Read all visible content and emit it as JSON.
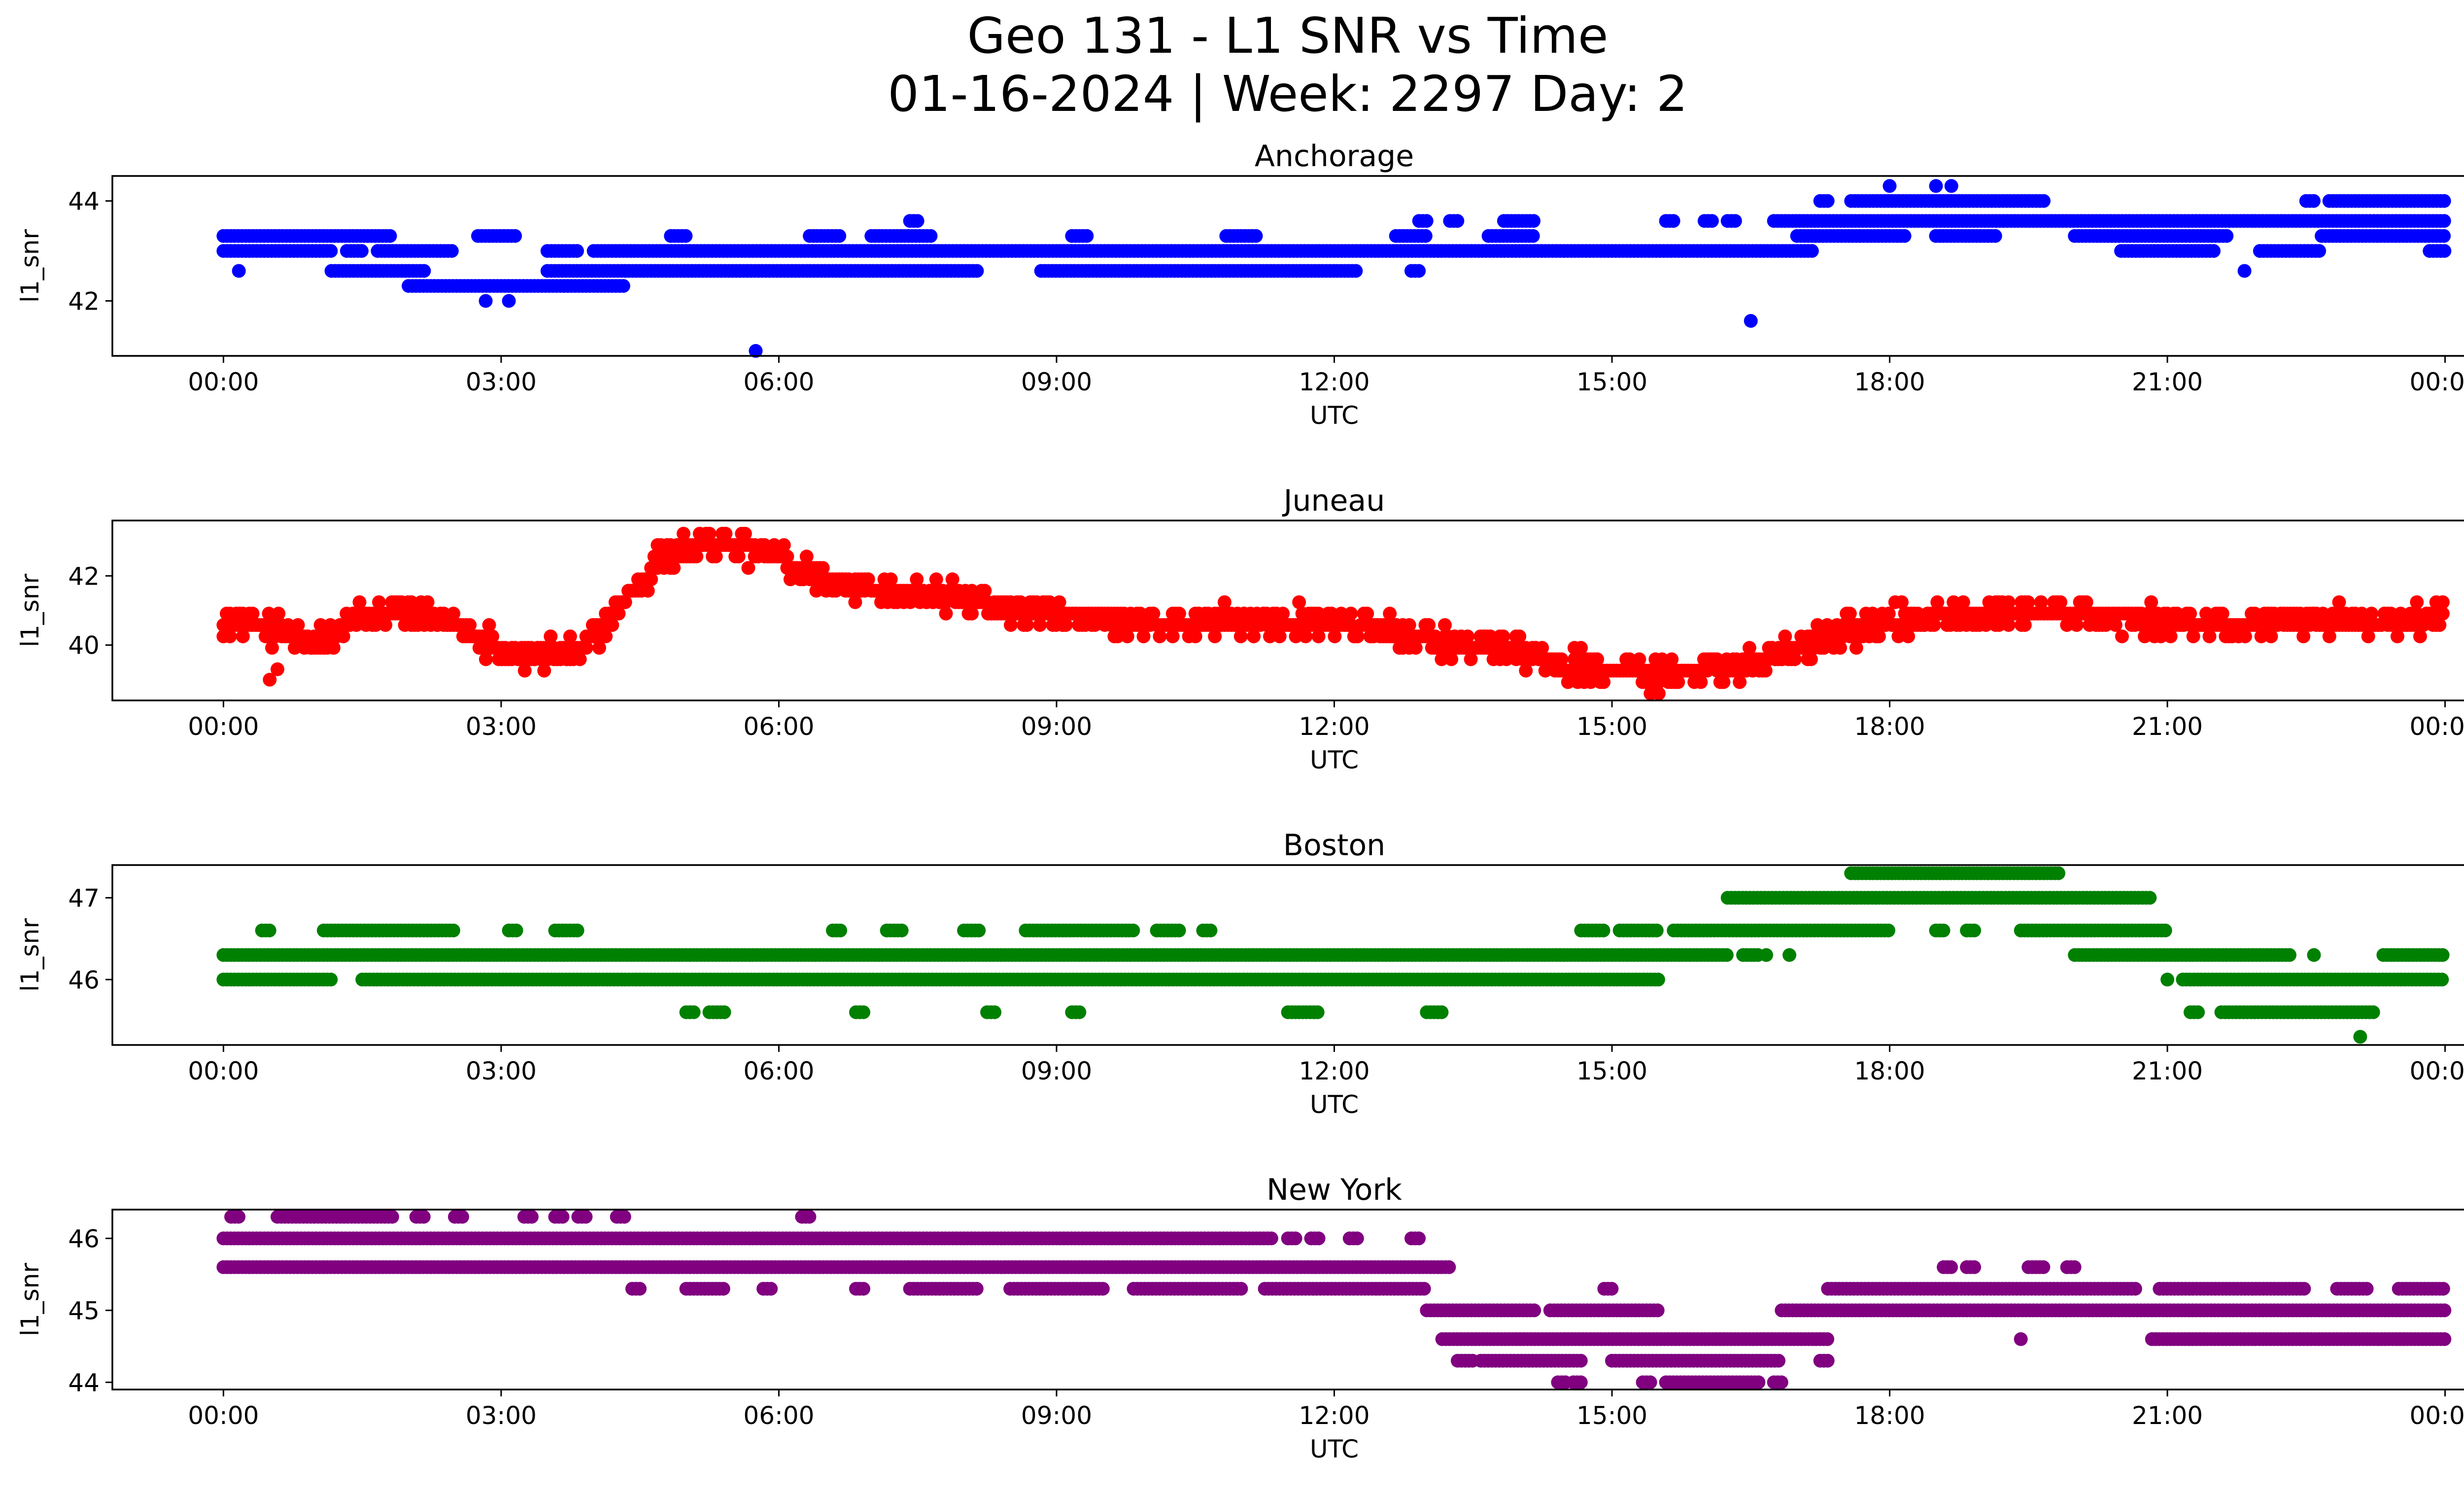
{
  "figure": {
    "title_line1": "Geo 131 - L1 SNR vs Time",
    "title_line2": "01-16-2024 | Week: 2297 Day: 2"
  },
  "chart_data": [
    {
      "type": "scatter",
      "title": "Anchorage",
      "xlabel": "UTC",
      "ylabel": "l1_snr",
      "color": "#0000ff",
      "xlim": [
        "2024-01-16 00:00",
        "2024-01-17 00:00"
      ],
      "xticks": [
        "00:00",
        "03:00",
        "06:00",
        "09:00",
        "12:00",
        "15:00",
        "18:00",
        "21:00",
        "00:00"
      ],
      "ylim": [
        40.9,
        44.5
      ],
      "yticks": [
        42,
        44
      ],
      "grid": false,
      "levels": [
        {
          "y": 43.3,
          "ranges": [
            [
              "00:00",
              "01:50"
            ],
            [
              "02:45",
              "03:10"
            ],
            [
              "04:50",
              "05:00"
            ],
            [
              "06:20",
              "06:40"
            ],
            [
              "07:00",
              "07:40"
            ],
            [
              "09:10",
              "09:20"
            ],
            [
              "10:50",
              "11:10"
            ],
            [
              "12:40",
              "13:00"
            ],
            [
              "13:40",
              "14:10"
            ],
            [
              "17:00",
              "18:10"
            ],
            [
              "18:30",
              "19:10"
            ],
            [
              "20:00",
              "21:40"
            ],
            [
              "22:40",
              "24:00"
            ]
          ]
        },
        {
          "y": 43.0,
          "ranges": [
            [
              "00:00",
              "01:10"
            ],
            [
              "01:20",
              "01:30"
            ],
            [
              "01:40",
              "02:30"
            ],
            [
              "03:30",
              "03:50"
            ],
            [
              "04:00",
              "17:10"
            ],
            [
              "20:30",
              "21:30"
            ],
            [
              "22:00",
              "22:40"
            ],
            [
              "23:50",
              "24:00"
            ]
          ]
        },
        {
          "y": 42.6,
          "ranges": [
            [
              "01:10",
              "02:10"
            ],
            [
              "03:30",
              "08:10"
            ],
            [
              "08:50",
              "12:15"
            ],
            [
              "12:50",
              "12:55"
            ]
          ]
        },
        {
          "y": 42.3,
          "ranges": [
            [
              "02:00",
              "04:20"
            ]
          ]
        },
        {
          "y": 43.6,
          "ranges": [
            [
              "07:25",
              "07:30"
            ],
            [
              "12:55",
              "13:00"
            ],
            [
              "13:15",
              "13:20"
            ],
            [
              "13:50",
              "14:10"
            ],
            [
              "15:35",
              "15:40"
            ],
            [
              "16:00",
              "16:05"
            ],
            [
              "16:15",
              "16:20"
            ],
            [
              "16:45",
              "24:00"
            ]
          ]
        },
        {
          "y": 44.0,
          "ranges": [
            [
              "17:15",
              "17:20"
            ],
            [
              "17:35",
              "19:40"
            ],
            [
              "22:30",
              "22:35"
            ],
            [
              "22:45",
              "24:00"
            ]
          ]
        }
      ],
      "points": [
        {
          "x": "00:10",
          "y": 42.6
        },
        {
          "x": "02:50",
          "y": 42.0
        },
        {
          "x": "03:05",
          "y": 42.0
        },
        {
          "x": "05:45",
          "y": 41.0
        },
        {
          "x": "16:30",
          "y": 41.6
        },
        {
          "x": "18:00",
          "y": 44.3
        },
        {
          "x": "18:30",
          "y": 44.3
        },
        {
          "x": "18:40",
          "y": 44.3
        },
        {
          "x": "21:50",
          "y": 42.6
        }
      ]
    },
    {
      "type": "scatter",
      "title": "Juneau",
      "xlabel": "UTC",
      "ylabel": "l1_snr",
      "color": "#ff0000",
      "xlim": [
        "2024-01-16 00:00",
        "2024-01-17 00:00"
      ],
      "xticks": [
        "00:00",
        "03:00",
        "06:00",
        "09:00",
        "12:00",
        "15:00",
        "18:00",
        "21:00",
        "00:00"
      ],
      "ylim": [
        38.4,
        43.6
      ],
      "yticks": [
        40,
        42
      ],
      "grid": false,
      "trend": [
        {
          "x": "00:00",
          "y": 40.7
        },
        {
          "x": "00:30",
          "y": 40.5
        },
        {
          "x": "01:00",
          "y": 40.0
        },
        {
          "x": "01:30",
          "y": 40.8
        },
        {
          "x": "02:00",
          "y": 41.0
        },
        {
          "x": "02:30",
          "y": 40.6
        },
        {
          "x": "03:00",
          "y": 39.9
        },
        {
          "x": "03:30",
          "y": 39.7
        },
        {
          "x": "03:50",
          "y": 39.8
        },
        {
          "x": "04:20",
          "y": 41.3
        },
        {
          "x": "04:45",
          "y": 42.6
        },
        {
          "x": "05:10",
          "y": 42.9
        },
        {
          "x": "05:40",
          "y": 42.8
        },
        {
          "x": "06:10",
          "y": 42.3
        },
        {
          "x": "06:40",
          "y": 41.8
        },
        {
          "x": "07:30",
          "y": 41.5
        },
        {
          "x": "08:30",
          "y": 41.1
        },
        {
          "x": "09:00",
          "y": 40.8
        },
        {
          "x": "10:00",
          "y": 40.6
        },
        {
          "x": "11:00",
          "y": 40.7
        },
        {
          "x": "12:00",
          "y": 40.6
        },
        {
          "x": "12:40",
          "y": 40.4
        },
        {
          "x": "13:20",
          "y": 40.0
        },
        {
          "x": "14:00",
          "y": 39.7
        },
        {
          "x": "14:30",
          "y": 39.5
        },
        {
          "x": "15:00",
          "y": 39.3
        },
        {
          "x": "15:30",
          "y": 39.1
        },
        {
          "x": "16:00",
          "y": 39.3
        },
        {
          "x": "16:30",
          "y": 39.5
        },
        {
          "x": "17:00",
          "y": 40.0
        },
        {
          "x": "17:30",
          "y": 40.4
        },
        {
          "x": "18:00",
          "y": 40.7
        },
        {
          "x": "18:30",
          "y": 40.9
        },
        {
          "x": "19:30",
          "y": 41.0
        },
        {
          "x": "20:30",
          "y": 40.8
        },
        {
          "x": "21:00",
          "y": 40.6
        },
        {
          "x": "21:30",
          "y": 40.6
        },
        {
          "x": "22:30",
          "y": 40.7
        },
        {
          "x": "24:00",
          "y": 40.7
        }
      ],
      "points": [
        {
          "x": "00:30",
          "y": 39.0
        },
        {
          "x": "00:35",
          "y": 39.3
        },
        {
          "x": "15:25",
          "y": 38.6
        }
      ]
    },
    {
      "type": "scatter",
      "title": "Boston",
      "xlabel": "UTC",
      "ylabel": "l1_snr",
      "color": "#008000",
      "xlim": [
        "2024-01-16 00:00",
        "2024-01-17 00:00"
      ],
      "xticks": [
        "00:00",
        "03:00",
        "06:00",
        "09:00",
        "12:00",
        "15:00",
        "18:00",
        "21:00",
        "00:00"
      ],
      "ylim": [
        45.2,
        47.4
      ],
      "yticks": [
        46,
        47
      ],
      "grid": false,
      "levels": [
        {
          "y": 46.3,
          "ranges": [
            [
              "00:00",
              "16:15"
            ],
            [
              "16:25",
              "16:35"
            ],
            [
              "20:00",
              "22:20"
            ],
            [
              "23:20",
              "24:00"
            ]
          ]
        },
        {
          "y": 46.0,
          "ranges": [
            [
              "00:00",
              "01:10"
            ],
            [
              "01:30",
              "15:30"
            ],
            [
              "21:10",
              "24:00"
            ]
          ]
        },
        {
          "y": 46.6,
          "ranges": [
            [
              "00:25",
              "00:30"
            ],
            [
              "01:05",
              "02:30"
            ],
            [
              "03:05",
              "03:10"
            ],
            [
              "03:35",
              "03:50"
            ],
            [
              "06:35",
              "06:40"
            ],
            [
              "07:10",
              "07:20"
            ],
            [
              "08:00",
              "08:10"
            ],
            [
              "08:40",
              "09:50"
            ],
            [
              "10:05",
              "10:20"
            ],
            [
              "10:35",
              "10:40"
            ],
            [
              "14:40",
              "14:55"
            ],
            [
              "15:05",
              "15:30"
            ],
            [
              "15:40",
              "18:00"
            ],
            [
              "18:30",
              "18:35"
            ],
            [
              "18:50",
              "18:55"
            ],
            [
              "19:25",
              "21:00"
            ]
          ]
        },
        {
          "y": 45.6,
          "ranges": [
            [
              "05:00",
              "05:05"
            ],
            [
              "05:15",
              "05:25"
            ],
            [
              "06:50",
              "06:55"
            ],
            [
              "08:15",
              "08:20"
            ],
            [
              "09:10",
              "09:15"
            ],
            [
              "11:30",
              "11:50"
            ],
            [
              "13:00",
              "13:10"
            ],
            [
              "21:15",
              "21:20"
            ],
            [
              "21:35",
              "23:15"
            ]
          ]
        },
        {
          "y": 47.0,
          "ranges": [
            [
              "16:15",
              "20:50"
            ]
          ]
        },
        {
          "y": 47.3,
          "ranges": [
            [
              "17:35",
              "19:50"
            ]
          ]
        }
      ],
      "points": [
        {
          "x": "16:40",
          "y": 46.3
        },
        {
          "x": "16:55",
          "y": 46.3
        },
        {
          "x": "21:00",
          "y": 46.0
        },
        {
          "x": "22:35",
          "y": 46.3
        },
        {
          "x": "23:05",
          "y": 45.3
        }
      ]
    },
    {
      "type": "scatter",
      "title": "New York",
      "xlabel": "UTC",
      "ylabel": "l1_snr",
      "color": "#800080",
      "xlim": [
        "2024-01-16 00:00",
        "2024-01-17 00:00"
      ],
      "xticks": [
        "00:00",
        "03:00",
        "06:00",
        "09:00",
        "12:00",
        "15:00",
        "18:00",
        "21:00",
        "00:00"
      ],
      "ylim": [
        43.9,
        46.4
      ],
      "yticks": [
        44,
        45,
        46
      ],
      "grid": false,
      "levels": [
        {
          "y": 46.0,
          "ranges": [
            [
              "00:00",
              "11:20"
            ],
            [
              "11:30",
              "11:35"
            ],
            [
              "11:45",
              "11:50"
            ],
            [
              "12:10",
              "12:15"
            ],
            [
              "12:50",
              "12:55"
            ]
          ]
        },
        {
          "y": 45.6,
          "ranges": [
            [
              "00:00",
              "13:15"
            ]
          ]
        },
        {
          "y": 46.3,
          "ranges": [
            [
              "00:05",
              "00:10"
            ],
            [
              "00:35",
              "01:50"
            ],
            [
              "02:05",
              "02:10"
            ],
            [
              "02:30",
              "02:35"
            ],
            [
              "03:15",
              "03:20"
            ],
            [
              "03:35",
              "03:40"
            ],
            [
              "03:50",
              "03:55"
            ],
            [
              "04:15",
              "04:20"
            ],
            [
              "06:15",
              "06:20"
            ]
          ]
        },
        {
          "y": 45.3,
          "ranges": [
            [
              "04:25",
              "04:30"
            ],
            [
              "05:00",
              "05:25"
            ],
            [
              "05:50",
              "05:55"
            ],
            [
              "06:50",
              "06:55"
            ],
            [
              "07:25",
              "08:10"
            ],
            [
              "08:30",
              "09:30"
            ],
            [
              "09:50",
              "11:00"
            ],
            [
              "11:15",
              "13:00"
            ],
            [
              "14:55",
              "15:00"
            ],
            [
              "17:20",
              "20:40"
            ],
            [
              "20:55",
              "22:30"
            ],
            [
              "22:50",
              "23:10"
            ],
            [
              "23:30",
              "24:00"
            ]
          ]
        },
        {
          "y": 45.0,
          "ranges": [
            [
              "13:00",
              "14:10"
            ],
            [
              "14:20",
              "15:30"
            ],
            [
              "16:50",
              "24:00"
            ]
          ]
        },
        {
          "y": 44.6,
          "ranges": [
            [
              "13:10",
              "17:20"
            ],
            [
              "20:50",
              "24:00"
            ]
          ]
        },
        {
          "y": 44.3,
          "ranges": [
            [
              "13:20",
              "13:30"
            ],
            [
              "13:35",
              "14:40"
            ],
            [
              "15:00",
              "16:50"
            ],
            [
              "17:15",
              "17:20"
            ]
          ]
        },
        {
          "y": 44.0,
          "ranges": [
            [
              "14:25",
              "14:30"
            ],
            [
              "14:35",
              "14:40"
            ],
            [
              "15:20",
              "15:25"
            ],
            [
              "15:35",
              "16:35"
            ],
            [
              "16:45",
              "16:50"
            ]
          ]
        },
        {
          "y": 45.6,
          "ranges": [
            [
              "18:35",
              "18:40"
            ],
            [
              "18:50",
              "18:55"
            ],
            [
              "19:30",
              "19:40"
            ],
            [
              "19:55",
              "20:00"
            ]
          ]
        }
      ],
      "points": [
        {
          "x": "19:25",
          "y": 44.6
        }
      ]
    }
  ]
}
